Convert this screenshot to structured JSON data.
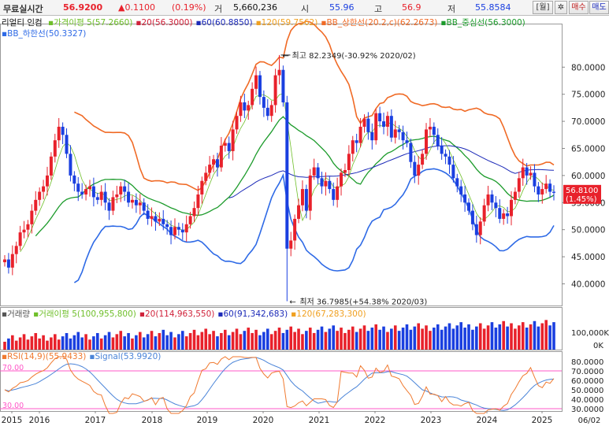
{
  "quote_bar": {
    "mode_label": "무료실시간",
    "price": "56.9200",
    "change": "▲0.1100",
    "change_pct": "(0.19%)",
    "volume_label": "거",
    "volume": "5,660,236",
    "open_label": "시",
    "open": "55.96",
    "high_label": "고",
    "high": "56.9",
    "low_label": "저",
    "low": "55.8584",
    "period_button": "[월]",
    "settings_icon": "gear-icon",
    "buy_button": "매수",
    "sell_button": "매도"
  },
  "colors": {
    "up": "#e8212b",
    "down": "#1a3fe0",
    "ma5": "#6fbf2a",
    "ma20": "#d0223a",
    "ma60": "#1c2ab8",
    "ma120": "#f0a020",
    "bb_upper": "#f06a25",
    "bb_mid": "#1c9b2b",
    "bb_lower": "#2e6ae6",
    "rsi": "#f07a30",
    "signal": "#4a84d8",
    "rsi_zone": "#ff58c8"
  },
  "price_legend": {
    "title": "리얼티 인컴",
    "items": [
      {
        "label": "가격이평 5(57.2660)",
        "color": "#6fbf2a"
      },
      {
        "label": "20(56.3000)",
        "color": "#d0223a"
      },
      {
        "label": "60(60.8850)",
        "color": "#1c2ab8"
      },
      {
        "label": "120(59.7562)",
        "color": "#f0a020"
      },
      {
        "label": "BB_상한선(20.2,c)(62.2673)",
        "color": "#f06a25"
      },
      {
        "label": "BB_중심선(56.3000)",
        "color": "#1c9b2b"
      },
      {
        "label": "BB_하한선(50.3327)",
        "color": "#2e6ae6"
      }
    ]
  },
  "annotations": {
    "high": "최고 82.2349(-30.92% 2020/02)",
    "low": "최저 36.7985(+54.38% 2020/03)",
    "last_price": "56.8100",
    "last_pct": "(1.45%)"
  },
  "volume_legend": {
    "items": [
      {
        "label": "거래량",
        "color": "#555555"
      },
      {
        "label": "거래이평 5(100,955,800)",
        "color": "#6fbf2a"
      },
      {
        "label": "20(114,963,550)",
        "color": "#d0223a"
      },
      {
        "label": "60(91,342,683)",
        "color": "#1c2ab8"
      },
      {
        "label": "120(67,283,300)",
        "color": "#f0a020"
      }
    ]
  },
  "rsi_legend": {
    "items": [
      {
        "label": "RSI(14,9)(55.9433)",
        "color": "#f07a30"
      },
      {
        "label": "Signal(53.9920)",
        "color": "#4a84d8"
      }
    ],
    "level_high": "70.00",
    "level_low": "30.00"
  },
  "price_axis": [
    "80.0000",
    "75.0000",
    "70.0000",
    "65.0000",
    "60.0000",
    "55.0000",
    "50.0000",
    "45.0000",
    "40.0000"
  ],
  "volume_axis": [
    "100,000K",
    "0K"
  ],
  "rsi_axis": [
    "80.0000",
    "70.0000",
    "60.0000",
    "50.0000",
    "40.0000",
    "30.0000"
  ],
  "x_axis": [
    "2015",
    "2016",
    "2017",
    "2018",
    "2019",
    "2020",
    "2021",
    "2022",
    "2023",
    "2024",
    "2025"
  ],
  "x_axis_end": "06/02",
  "chart_data": {
    "type": "candlestick",
    "title": "리얼티 인컴",
    "interval": "monthly",
    "x_range": [
      "2015",
      "2025/06"
    ],
    "ylim": [
      36,
      85
    ],
    "closes": [
      44.5,
      43.0,
      45.5,
      47.0,
      49.5,
      50.0,
      51.0,
      53.5,
      55.5,
      57.0,
      58.0,
      60.0,
      63.5,
      66.5,
      69.0,
      67.5,
      64.0,
      60.0,
      58.5,
      57.0,
      56.5,
      57.5,
      58.0,
      56.0,
      55.5,
      57.0,
      55.0,
      53.5,
      56.0,
      56.5,
      58.0,
      57.0,
      55.0,
      55.5,
      54.5,
      55.0,
      53.5,
      52.0,
      52.5,
      51.5,
      52.0,
      51.0,
      50.5,
      49.0,
      50.5,
      50.0,
      49.5,
      51.0,
      52.5,
      54.0,
      56.5,
      59.0,
      60.5,
      62.0,
      63.0,
      61.5,
      65.5,
      66.0,
      64.5,
      68.5,
      71.0,
      73.5,
      72.0,
      73.0,
      76.0,
      78.5,
      74.5,
      72.5,
      71.0,
      73.0,
      78.5,
      79.5,
      73.5,
      46.5,
      48.0,
      52.0,
      54.5,
      57.5,
      53.5,
      60.0,
      61.5,
      59.5,
      58.0,
      59.0,
      57.5,
      55.5,
      58.0,
      60.5,
      61.0,
      64.0,
      66.5,
      66.0,
      69.0,
      70.5,
      68.0,
      66.5,
      71.5,
      70.0,
      69.0,
      71.0,
      67.0,
      68.5,
      68.0,
      66.5,
      66.0,
      62.5,
      60.0,
      62.0,
      64.0,
      68.5,
      69.0,
      67.5,
      65.5,
      64.0,
      63.5,
      62.0,
      59.5,
      58.0,
      56.5,
      55.0,
      53.5,
      51.0,
      49.0,
      51.5,
      54.5,
      56.5,
      55.0,
      54.0,
      52.0,
      53.0,
      52.5,
      55.5,
      57.0,
      59.5,
      61.5,
      60.0,
      60.5,
      58.0,
      56.5,
      57.5,
      58.5,
      57.0,
      56.81
    ],
    "series": [
      {
        "name": "BB_상한선",
        "last": 62.2673
      },
      {
        "name": "BB_중심선",
        "last": 56.3
      },
      {
        "name": "BB_하한선",
        "last": 50.3327
      },
      {
        "name": "60",
        "last": 60.885
      },
      {
        "name": "가격이평 5",
        "last": 57.266
      }
    ],
    "high": {
      "value": 82.2349,
      "date": "2020/02"
    },
    "low": {
      "value": 36.7985,
      "date": "2020/03"
    },
    "last": 56.81
  }
}
